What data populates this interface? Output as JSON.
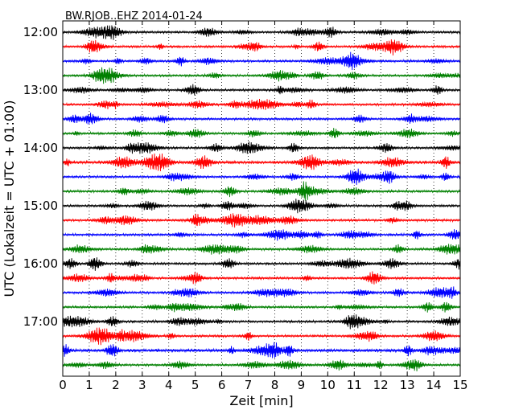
{
  "chart_data": {
    "type": "line",
    "title": "BW.RJOB..EHZ 2014-01-24",
    "xlabel": "Zeit  [min]",
    "ylabel": "UTC (Lokalzeit = UTC + 01:00)",
    "xlim": [
      0,
      15
    ],
    "x_ticks": [
      0,
      1,
      2,
      3,
      4,
      5,
      6,
      7,
      8,
      9,
      10,
      11,
      12,
      13,
      14,
      15
    ],
    "x_tick_labels": [
      "0",
      "1",
      "2",
      "3",
      "4",
      "5",
      "6",
      "7",
      "8",
      "9",
      "10",
      "11",
      "12",
      "13",
      "14",
      "15"
    ],
    "y_tick_labels": [
      "12:00",
      "13:00",
      "14:00",
      "15:00",
      "16:00",
      "17:00"
    ],
    "y_tick_times": [
      "12:00",
      "13:00",
      "14:00",
      "15:00",
      "16:00",
      "17:00"
    ],
    "trace_interval_minutes": 15,
    "trace_start": "12:00",
    "trace_count": 24,
    "trace_colors": [
      "#000000",
      "#ff0000",
      "#0000ff",
      "#008000"
    ],
    "grid": "vertical dotted lines at each minute",
    "series": [
      {
        "start": "12:00",
        "color": "#000000",
        "amplitude_level": "low"
      },
      {
        "start": "12:15",
        "color": "#ff0000",
        "amplitude_level": "low"
      },
      {
        "start": "12:30",
        "color": "#0000ff",
        "amplitude_level": "low"
      },
      {
        "start": "12:45",
        "color": "#008000",
        "amplitude_level": "low"
      },
      {
        "start": "13:00",
        "color": "#000000",
        "amplitude_level": "low"
      },
      {
        "start": "13:15",
        "color": "#ff0000",
        "amplitude_level": "low"
      },
      {
        "start": "13:30",
        "color": "#0000ff",
        "amplitude_level": "low"
      },
      {
        "start": "13:45",
        "color": "#008000",
        "amplitude_level": "low"
      },
      {
        "start": "14:00",
        "color": "#000000",
        "amplitude_level": "low"
      },
      {
        "start": "14:15",
        "color": "#ff0000",
        "amplitude_level": "medium"
      },
      {
        "start": "14:30",
        "color": "#0000ff",
        "amplitude_level": "low"
      },
      {
        "start": "14:45",
        "color": "#008000",
        "amplitude_level": "low"
      },
      {
        "start": "15:00",
        "color": "#000000",
        "amplitude_level": "low"
      },
      {
        "start": "15:15",
        "color": "#ff0000",
        "amplitude_level": "low"
      },
      {
        "start": "15:30",
        "color": "#0000ff",
        "amplitude_level": "low"
      },
      {
        "start": "15:45",
        "color": "#008000",
        "amplitude_level": "low"
      },
      {
        "start": "16:00",
        "color": "#000000",
        "amplitude_level": "low"
      },
      {
        "start": "16:15",
        "color": "#ff0000",
        "amplitude_level": "low"
      },
      {
        "start": "16:30",
        "color": "#0000ff",
        "amplitude_level": "low"
      },
      {
        "start": "16:45",
        "color": "#008000",
        "amplitude_level": "low"
      },
      {
        "start": "17:00",
        "color": "#000000",
        "amplitude_level": "low"
      },
      {
        "start": "17:15",
        "color": "#ff0000",
        "amplitude_level": "low"
      },
      {
        "start": "17:30",
        "color": "#0000ff",
        "amplitude_level": "medium"
      },
      {
        "start": "17:45",
        "color": "#008000",
        "amplitude_level": "low"
      }
    ]
  }
}
